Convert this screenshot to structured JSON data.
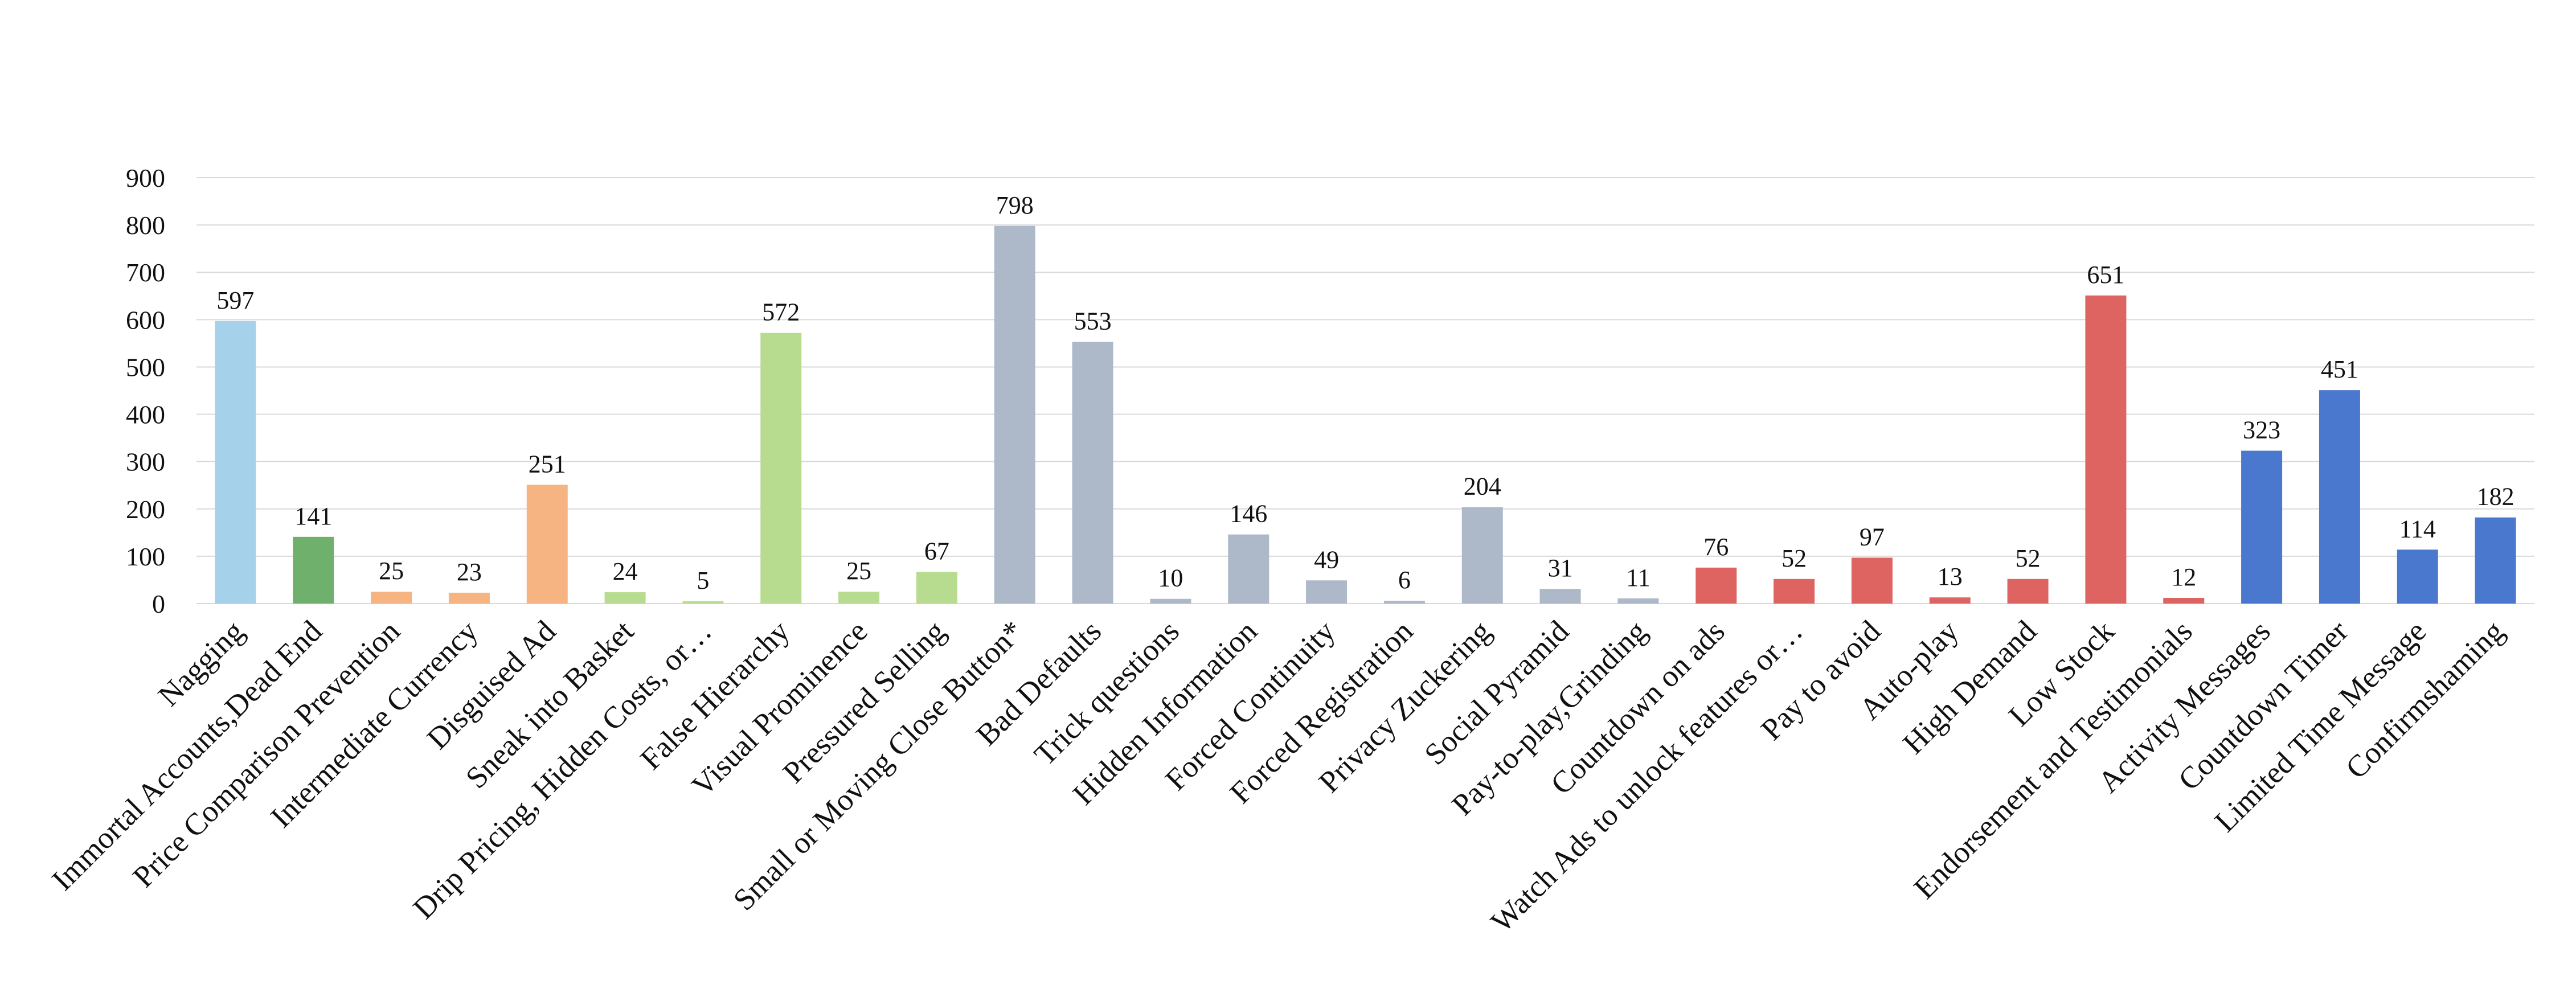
{
  "chart_data": {
    "type": "bar",
    "title": "",
    "xlabel": "",
    "ylabel": "",
    "ylim": [
      0,
      900
    ],
    "yticks": [
      0,
      100,
      200,
      300,
      400,
      500,
      600,
      700,
      800,
      900
    ],
    "grid": true,
    "legend": "none",
    "categories": [
      "Nagging",
      "Immortal Accounts,Dead End",
      "Price Comparison Prevention",
      "Intermediate Currency",
      "Disguised Ad",
      "Sneak into Basket",
      "Drip Pricing, Hidden Costs, or…",
      "False Hierarchy",
      "Visual Prominence",
      "Pressured Selling",
      "Small or Moving Close Button*",
      "Bad Defaults",
      "Trick questions",
      "Hidden Information",
      "Forced Continuity",
      "Forced Registration",
      "Privacy Zuckering",
      "Social Pyramid",
      "Pay-to-play,Grinding",
      "Countdown on ads",
      "Watch Ads to unlock features or…",
      "Pay to avoid",
      "Auto-play",
      "High Demand",
      "Low Stock",
      "Endorsement and Testimonials",
      "Activity Messages",
      "Countdown Timer",
      "Limited Time Message",
      "Confirmshaming"
    ],
    "values": [
      597,
      141,
      25,
      23,
      251,
      24,
      5,
      572,
      25,
      67,
      798,
      553,
      10,
      146,
      49,
      6,
      204,
      31,
      11,
      76,
      52,
      97,
      13,
      52,
      651,
      12,
      323,
      451,
      114,
      182
    ],
    "data_labels": [
      "597",
      "141",
      "25",
      "23",
      "251",
      "24",
      "5",
      "572",
      "25",
      "67",
      "798",
      "553",
      "10",
      "146",
      "49",
      "6",
      "204",
      "31",
      "11",
      "76",
      "52",
      "97",
      "13",
      "52",
      "651",
      "12",
      "323",
      "451",
      "114",
      "182"
    ],
    "colors": [
      "#a6d1ea",
      "#70b06d",
      "#f7b483",
      "#f7b483",
      "#f7b483",
      "#b8dc8f",
      "#b8dc8f",
      "#b8dc8f",
      "#b8dc8f",
      "#b8dc8f",
      "#adb8c9",
      "#adb8c9",
      "#adb8c9",
      "#adb8c9",
      "#adb8c9",
      "#adb8c9",
      "#adb8c9",
      "#adb8c9",
      "#adb8c9",
      "#dd6460",
      "#dd6460",
      "#dd6460",
      "#dd6460",
      "#dd6460",
      "#dd6460",
      "#dd6460",
      "#4a78cf",
      "#4a78cf",
      "#4a78cf",
      "#4a78cf"
    ]
  }
}
